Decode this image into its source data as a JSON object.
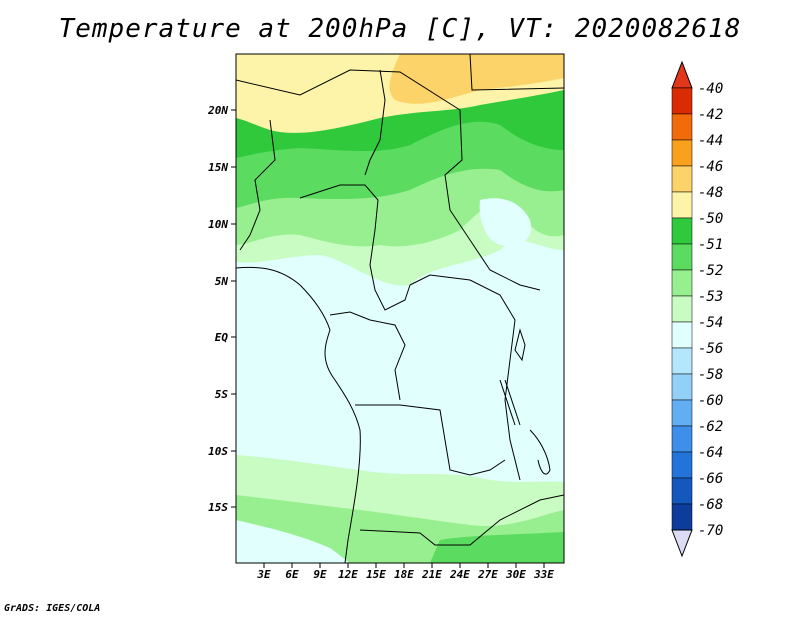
{
  "title": "Temperature at 200hPa [C], VT: 2020082618",
  "credit": "GrADS: IGES/COLA",
  "map": {
    "lat_labels": [
      "20N",
      "15N",
      "10N",
      "5N",
      "EQ",
      "5S",
      "10S",
      "15S"
    ],
    "lon_labels": [
      "3E",
      "6E",
      "9E",
      "12E",
      "15E",
      "18E",
      "21E",
      "24E",
      "27E",
      "30E",
      "33E"
    ]
  },
  "colorbar": {
    "labels": [
      "-40",
      "-42",
      "-44",
      "-46",
      "-48",
      "-50",
      "-51",
      "-52",
      "-53",
      "-54",
      "-56",
      "-58",
      "-60",
      "-62",
      "-64",
      "-66",
      "-68",
      "-70"
    ],
    "colors": [
      "#d92b04",
      "#f26b0b",
      "#f9a11d",
      "#fcd368",
      "#fdf4a9",
      "#31c93c",
      "#5bdb5f",
      "#97ef8f",
      "#c8fcc2",
      "#e0fffd",
      "#b4e6fc",
      "#93d0f8",
      "#62aef2",
      "#3e8fe9",
      "#2374da",
      "#1458be",
      "#0d3c9c",
      "#070f68"
    ],
    "top_color": "#e3361b",
    "bottom_color": "#dcdcf5"
  },
  "legend_colors": {
    "lt50": "#fdf4a9",
    "lt48": "#fcd368",
    "b52": "#31c93c",
    "b53": "#5bdb5f",
    "b54": "#97ef8f",
    "b56": "#c8fcc2",
    "cold": "#e0fffd"
  }
}
